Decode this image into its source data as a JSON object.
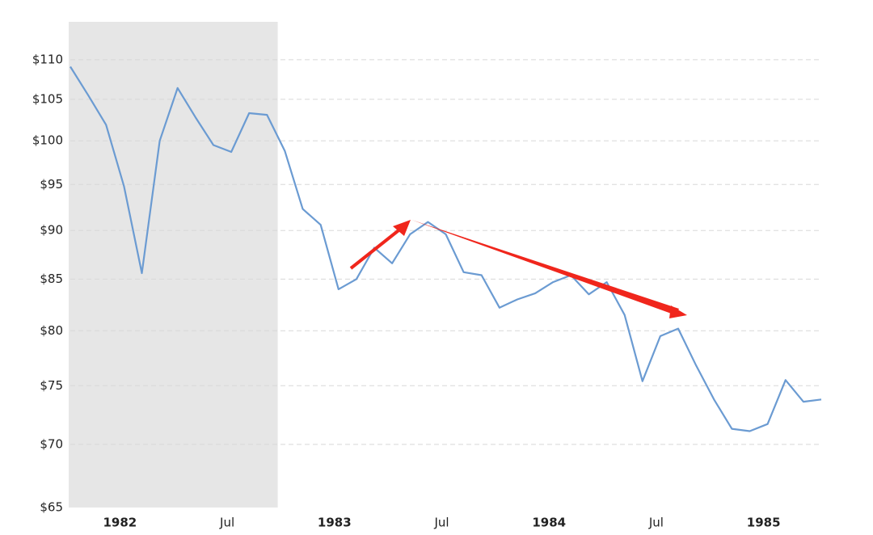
{
  "chart_data": {
    "type": "line",
    "log_scale": true,
    "grid": true,
    "categories": [
      null,
      null,
      null,
      "1982",
      null,
      null,
      null,
      null,
      null,
      "Jul",
      null,
      null,
      null,
      null,
      null,
      "1983",
      null,
      null,
      null,
      null,
      null,
      "Jul",
      null,
      null,
      null,
      null,
      null,
      "1984",
      null,
      null,
      null,
      null,
      null,
      "Jul",
      null,
      null,
      null,
      null,
      null,
      "1985",
      null,
      null,
      null
    ],
    "series": [
      {
        "color": "#6b9bd2",
        "values": [
          109.1,
          105.5,
          101.9,
          94.8,
          85.6,
          100.0,
          106.4,
          102.8,
          99.5,
          98.7,
          103.3,
          103.1,
          98.8,
          92.3,
          90.6,
          84.0,
          85.0,
          88.2,
          86.6,
          89.6,
          90.9,
          89.6,
          85.7,
          85.4,
          82.2,
          83.0,
          83.6,
          84.7,
          85.4,
          83.5,
          84.7,
          81.5,
          75.4,
          79.5,
          80.2,
          76.8,
          73.8,
          71.3,
          71.1,
          71.7,
          75.5,
          73.6,
          73.8
        ]
      }
    ],
    "shaded_range": [
      0,
      11.6
    ],
    "shade_color": "#e6e6e6",
    "ylim": [
      65,
      115
    ],
    "yticks": [
      {
        "value": 65,
        "label": "$65"
      },
      {
        "value": 70,
        "label": "$70"
      },
      {
        "value": 75,
        "label": "$75"
      },
      {
        "value": 80,
        "label": "$80"
      },
      {
        "value": 85,
        "label": "$85"
      },
      {
        "value": 90,
        "label": "$90"
      },
      {
        "value": 95,
        "label": "$95"
      },
      {
        "value": 100,
        "label": "$100"
      },
      {
        "value": 105,
        "label": "$105"
      },
      {
        "value": 110,
        "label": "$110"
      }
    ]
  }
}
